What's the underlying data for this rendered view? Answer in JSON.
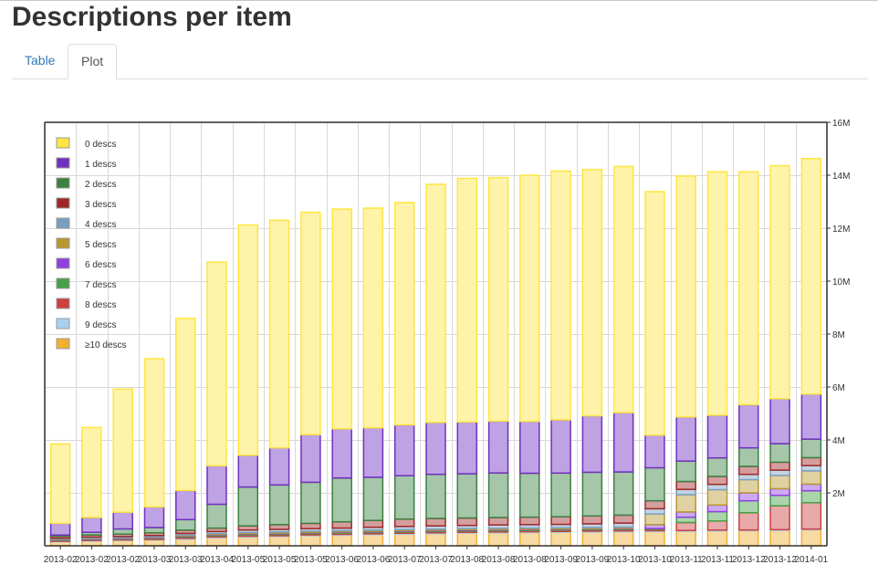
{
  "page": {
    "title": "Descriptions per item"
  },
  "tabs": [
    {
      "label": "Table"
    },
    {
      "label": "Plot"
    }
  ],
  "chart_data": {
    "type": "bar",
    "stacked": true,
    "legend_position": "top-left",
    "grid": true,
    "ylim": [
      0,
      16000000
    ],
    "yticks": [
      {
        "value": 2000000,
        "label": "2M"
      },
      {
        "value": 4000000,
        "label": "4M"
      },
      {
        "value": 6000000,
        "label": "6M"
      },
      {
        "value": 8000000,
        "label": "8M"
      },
      {
        "value": 10000000,
        "label": "10M"
      },
      {
        "value": 12000000,
        "label": "12M"
      },
      {
        "value": 14000000,
        "label": "14M"
      },
      {
        "value": 16000000,
        "label": "16M"
      }
    ],
    "categories": [
      "2013-02",
      "2013-02",
      "2013-02",
      "2013-03",
      "2013-03",
      "2013-04",
      "2013-05",
      "2013-05",
      "2013-05",
      "2013-06",
      "2013-06",
      "2013-07",
      "2013-07",
      "2013-08",
      "2013-08",
      "2013-08",
      "2013-09",
      "2013-09",
      "2013-10",
      "2013-10",
      "2013-11",
      "2013-11",
      "2013-12",
      "2013-12",
      "2014-01"
    ],
    "series": [
      {
        "name": "≥10 descs",
        "color": "#f0b030",
        "values": [
          150000,
          180000,
          200000,
          220000,
          250000,
          300000,
          330000,
          350000,
          380000,
          400000,
          420000,
          440000,
          460000,
          480000,
          490000,
          500000,
          510000,
          520000,
          530000,
          540000,
          550000,
          560000,
          570000,
          580000,
          600000
        ]
      },
      {
        "name": "9 descs",
        "color": "#aad0f0",
        "values": [
          20000,
          20000,
          20000,
          20000,
          30000,
          30000,
          30000,
          30000,
          30000,
          30000,
          30000,
          30000,
          30000,
          30000,
          30000,
          30000,
          30000,
          30000,
          30000,
          30000,
          30000,
          30000,
          30000,
          30000,
          30000
        ]
      },
      {
        "name": "8 descs",
        "color": "#cc4040",
        "values": [
          30000,
          30000,
          30000,
          40000,
          50000,
          50000,
          50000,
          50000,
          50000,
          50000,
          50000,
          50000,
          50000,
          50000,
          50000,
          50000,
          50000,
          50000,
          50000,
          50000,
          300000,
          350000,
          650000,
          900000,
          1000000
        ]
      },
      {
        "name": "7 descs",
        "color": "#44a044",
        "values": [
          20000,
          20000,
          20000,
          20000,
          30000,
          30000,
          30000,
          30000,
          30000,
          30000,
          30000,
          30000,
          30000,
          30000,
          30000,
          30000,
          30000,
          30000,
          30000,
          30000,
          200000,
          350000,
          450000,
          400000,
          450000
        ]
      },
      {
        "name": "6 descs",
        "color": "#9040e0",
        "values": [
          20000,
          20000,
          20000,
          20000,
          20000,
          20000,
          20000,
          20000,
          20000,
          20000,
          20000,
          20000,
          20000,
          20000,
          20000,
          20000,
          20000,
          20000,
          20000,
          150000,
          200000,
          250000,
          300000,
          250000,
          250000
        ]
      },
      {
        "name": "5 descs",
        "color": "#b89830",
        "values": [
          20000,
          20000,
          20000,
          20000,
          30000,
          30000,
          40000,
          40000,
          40000,
          40000,
          40000,
          40000,
          40000,
          40000,
          40000,
          40000,
          40000,
          40000,
          50000,
          400000,
          650000,
          580000,
          500000,
          500000,
          500000
        ]
      },
      {
        "name": "4 descs",
        "color": "#7a9ec0",
        "values": [
          30000,
          40000,
          40000,
          50000,
          60000,
          80000,
          100000,
          100000,
          100000,
          100000,
          110000,
          120000,
          120000,
          120000,
          130000,
          130000,
          130000,
          140000,
          150000,
          200000,
          200000,
          200000,
          200000,
          200000,
          200000
        ]
      },
      {
        "name": "3 descs",
        "color": "#a02828",
        "values": [
          70000,
          80000,
          90000,
          100000,
          120000,
          130000,
          150000,
          180000,
          200000,
          240000,
          260000,
          280000,
          280000,
          280000,
          280000,
          280000,
          290000,
          300000,
          300000,
          300000,
          300000,
          300000,
          300000,
          300000,
          300000
        ]
      },
      {
        "name": "2 descs",
        "color": "#3a8040",
        "values": [
          50000,
          100000,
          200000,
          200000,
          400000,
          900000,
          1470000,
          1500000,
          1550000,
          1650000,
          1630000,
          1640000,
          1670000,
          1670000,
          1680000,
          1660000,
          1650000,
          1650000,
          1630000,
          1250000,
          770000,
          700000,
          700000,
          700000,
          700000
        ]
      },
      {
        "name": "1 descs",
        "color": "#7030c0",
        "values": [
          440000,
          560000,
          630000,
          780000,
          1100000,
          1450000,
          1200000,
          1400000,
          1800000,
          1860000,
          1870000,
          1920000,
          1960000,
          1960000,
          1960000,
          1960000,
          2010000,
          2130000,
          2240000,
          1230000,
          1670000,
          1610000,
          1630000,
          1700000,
          1700000
        ]
      },
      {
        "name": "0 descs",
        "color": "#ffe540",
        "values": [
          3000000,
          3400000,
          4650000,
          5600000,
          6500000,
          7700000,
          8700000,
          8600000,
          8400000,
          8300000,
          8300000,
          8400000,
          9000000,
          9200000,
          9200000,
          9300000,
          9400000,
          9300000,
          9300000,
          9200000,
          9100000,
          9200000,
          8800000,
          8800000,
          8900000
        ]
      }
    ],
    "legend": [
      "0 descs",
      "1 descs",
      "2 descs",
      "3 descs",
      "4 descs",
      "5 descs",
      "6 descs",
      "7 descs",
      "8 descs",
      "9 descs",
      "≥10 descs"
    ]
  }
}
